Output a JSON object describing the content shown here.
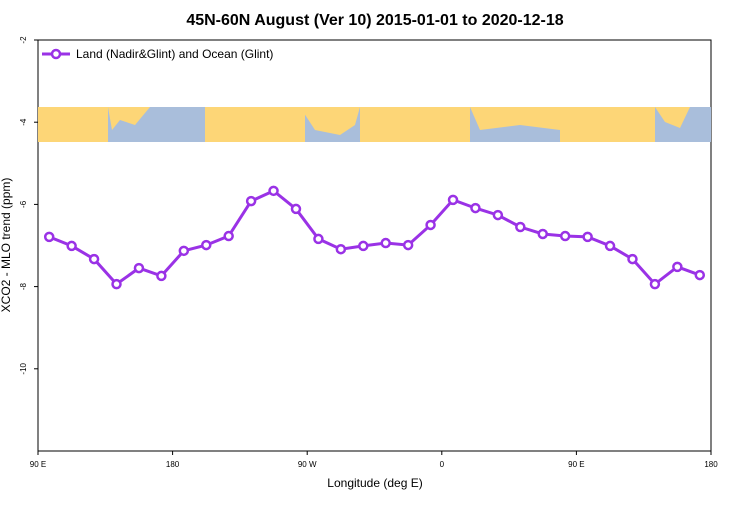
{
  "chart_data": {
    "type": "line",
    "title": "45N-60N August (Ver 10)   2015-01-01 to 2020-12-18",
    "x_label": "Longitude (deg E)",
    "y_label": "XCO2 - MLO trend (ppm)",
    "x": [
      97.5,
      112.5,
      127.5,
      142.5,
      157.5,
      172.5,
      187.5,
      202.5,
      217.5,
      232.5,
      247.5,
      262.5,
      277.5,
      292.5,
      307.5,
      322.5,
      337.5,
      352.5,
      367.5,
      382.5,
      397.5,
      412.5,
      427.5,
      442.5,
      457.5,
      472.5,
      487.5,
      502.5,
      517.5,
      532.5
    ],
    "series": [
      {
        "name": "Land (Nadir&Glint) and Ocean (Glint)",
        "color": "#9a32e6",
        "values": [
          -6.79,
          -7.01,
          -7.33,
          -7.94,
          -7.55,
          -7.74,
          -7.13,
          -6.99,
          -6.77,
          -5.92,
          -5.67,
          -6.11,
          -6.84,
          -7.09,
          -7.01,
          -6.94,
          -6.99,
          -6.5,
          -5.89,
          -6.09,
          -6.26,
          -6.55,
          -6.72,
          -6.77,
          -6.79,
          -7.01,
          -7.33,
          -7.94,
          -7.52,
          -7.72
        ]
      }
    ],
    "xlim": [
      90,
      540
    ],
    "xticks": [
      {
        "value": 90,
        "label": "90 E"
      },
      {
        "value": 180,
        "label": "180"
      },
      {
        "value": 270,
        "label": "90 W"
      },
      {
        "value": 360,
        "label": "0"
      },
      {
        "value": 450,
        "label": "90 E"
      },
      {
        "value": 540,
        "label": "180"
      }
    ],
    "ylim": [
      -12,
      -2
    ],
    "yticks": [
      -2,
      -4,
      -6,
      -8,
      -10
    ],
    "legend": "top-left"
  }
}
